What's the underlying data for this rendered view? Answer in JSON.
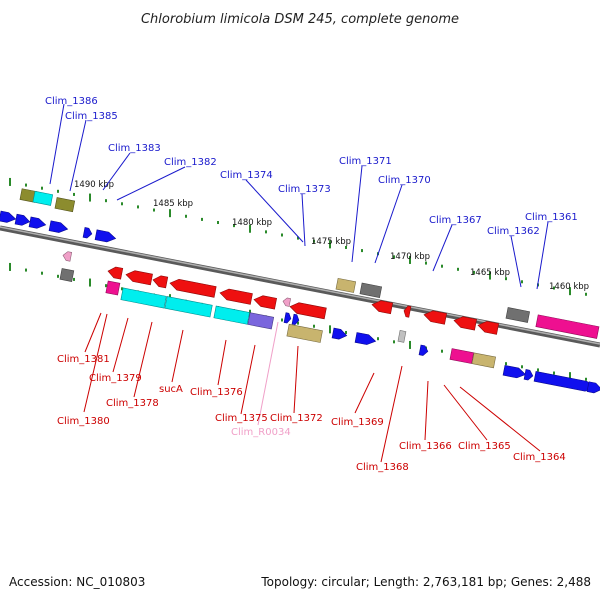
{
  "title": "Chlorobium limicola DSM 245, complete genome",
  "footer": {
    "accession": "Accession: NC_010803",
    "summary": "Topology: circular; Length: 2,763,181 bp; Genes: 2,488"
  },
  "scale_labels": [
    "1490 kbp",
    "1485 kbp",
    "1480 kbp",
    "1475 kbp",
    "1470 kbp",
    "1465 kbp",
    "1460 kbp"
  ],
  "colors": {
    "forward_label": "#1a1acc",
    "reverse_label": "#cc0000",
    "rna_label": "#f0a0c8",
    "backbone": "#808080",
    "tick": "#2a8a2a",
    "forward_gene": "#1010ee",
    "reverse_gene": "#ee1010"
  },
  "gene_labels": {
    "top": [
      "Clim_1386",
      "Clim_1385",
      "Clim_1383",
      "Clim_1382",
      "Clim_1374",
      "Clim_1373",
      "Clim_1371",
      "Clim_1370",
      "Clim_1367",
      "Clim_1362",
      "Clim_1361"
    ],
    "bottom": [
      "Clim_1381",
      "Clim_1379",
      "Clim_1380",
      "Clim_1378",
      "sucA",
      "Clim_1376",
      "Clim_1375",
      "Clim_R0034",
      "Clim_1372",
      "Clim_1369",
      "Clim_1368",
      "Clim_1366",
      "Clim_1365",
      "Clim_1364"
    ]
  }
}
